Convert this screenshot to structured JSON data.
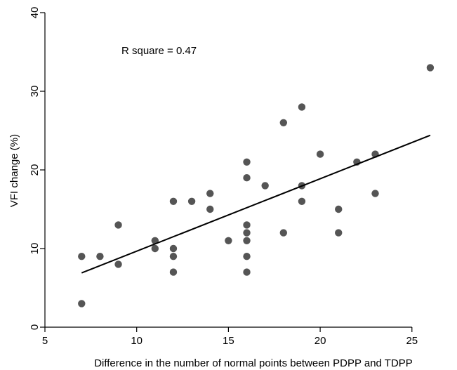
{
  "chart_data": {
    "type": "scatter",
    "xlabel": "Difference in the number of normal points between PDPP and TDPP",
    "ylabel": "VFI change (%)",
    "xlim": [
      5,
      26.5
    ],
    "ylim": [
      0,
      40
    ],
    "xticks": [
      5,
      10,
      15,
      20,
      25
    ],
    "yticks": [
      0,
      10,
      20,
      30,
      40
    ],
    "grid": false,
    "annotation": "R square = 0.47",
    "point_color": "#555555",
    "line_color": "#000000",
    "points": [
      {
        "x": 7,
        "y": 3
      },
      {
        "x": 7,
        "y": 9
      },
      {
        "x": 8,
        "y": 9
      },
      {
        "x": 9,
        "y": 13
      },
      {
        "x": 9,
        "y": 8
      },
      {
        "x": 11,
        "y": 11
      },
      {
        "x": 11,
        "y": 10
      },
      {
        "x": 12,
        "y": 16
      },
      {
        "x": 12,
        "y": 10
      },
      {
        "x": 12,
        "y": 9
      },
      {
        "x": 12,
        "y": 7
      },
      {
        "x": 13,
        "y": 16
      },
      {
        "x": 14,
        "y": 17
      },
      {
        "x": 14,
        "y": 15
      },
      {
        "x": 15,
        "y": 11
      },
      {
        "x": 16,
        "y": 21
      },
      {
        "x": 16,
        "y": 19
      },
      {
        "x": 16,
        "y": 13
      },
      {
        "x": 16,
        "y": 12
      },
      {
        "x": 16,
        "y": 11
      },
      {
        "x": 16,
        "y": 9
      },
      {
        "x": 16,
        "y": 7
      },
      {
        "x": 17,
        "y": 18
      },
      {
        "x": 18,
        "y": 26
      },
      {
        "x": 18,
        "y": 12
      },
      {
        "x": 19,
        "y": 28
      },
      {
        "x": 19,
        "y": 18
      },
      {
        "x": 19,
        "y": 16
      },
      {
        "x": 20,
        "y": 22
      },
      {
        "x": 21,
        "y": 15
      },
      {
        "x": 21,
        "y": 12
      },
      {
        "x": 22,
        "y": 21
      },
      {
        "x": 23,
        "y": 22
      },
      {
        "x": 23,
        "y": 17
      },
      {
        "x": 26,
        "y": 33
      }
    ],
    "fit_line": {
      "x": [
        7,
        26
      ],
      "y": [
        6.9,
        24.4
      ]
    }
  }
}
